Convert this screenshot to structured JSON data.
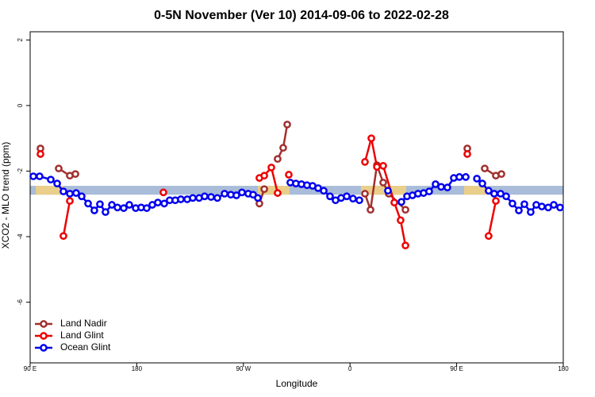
{
  "chart_data": {
    "type": "line",
    "title": "0-5N November (Ver 10)   2014-09-06 to 2022-02-28",
    "x_label": "Longitude",
    "y_label": "XCO2 - MLO trend (ppm)",
    "xlim": [
      90,
      540
    ],
    "ylim": [
      -7.85,
      2.25
    ],
    "xticks": [
      {
        "value": 90,
        "label": "90 E"
      },
      {
        "value": 180,
        "label": "180"
      },
      {
        "value": 270,
        "label": "90 W"
      },
      {
        "value": 360,
        "label": "0"
      },
      {
        "value": 450,
        "label": "90 E"
      },
      {
        "value": 540,
        "label": "180"
      }
    ],
    "yticks": [
      2,
      0,
      -2,
      -4,
      -6
    ],
    "band": {
      "range": [
        -2.45,
        -2.72
      ],
      "color": "#a9bcd9"
    },
    "highlight_ranges": {
      "color": "#f5d27a",
      "ranges": [
        [
          94.7,
          118.1
        ],
        [
          282.2,
          309.0
        ],
        [
          369.2,
          407.4
        ],
        [
          456.3,
          476.4
        ]
      ]
    },
    "legend": "bottom-left",
    "series": [
      {
        "name": "Land Nadir",
        "color": "#a0302e",
        "x": [
          98.7,
          null,
          114.1,
          123.5,
          128.2,
          null,
          283.5,
          287.6,
          null,
          298.9,
          303.6,
          307.0,
          null,
          372.6,
          377.3,
          382.7,
          388.0,
          392.7,
          406.8,
          null,
          459.0,
          null,
          473.7,
          483.1,
          487.8
        ],
        "values": [
          -1.31,
          null,
          -1.92,
          -2.14,
          -2.09,
          null,
          -2.99,
          -2.55,
          null,
          -1.63,
          -1.29,
          -0.58,
          null,
          -2.69,
          -3.18,
          -1.82,
          -2.35,
          -2.69,
          -3.18,
          null,
          -1.31,
          null,
          -1.92,
          -2.14,
          -2.09
        ]
      },
      {
        "name": "Land Glint",
        "color": "#ee0000",
        "x": [
          98.7,
          null,
          118.1,
          123.5,
          null,
          202.5,
          null,
          283.5,
          287.6,
          293.6,
          298.9,
          null,
          308.3,
          null,
          372.6,
          378.0,
          382.7,
          388.0,
          397.4,
          402.7,
          406.8,
          null,
          459.0,
          null,
          477.0,
          483.1
        ],
        "values": [
          -1.48,
          null,
          -3.98,
          -2.91,
          null,
          -2.65,
          null,
          -2.21,
          -2.14,
          -1.89,
          -2.67,
          null,
          -2.11,
          null,
          -1.72,
          -1.0,
          -1.87,
          -1.84,
          -2.96,
          -3.5,
          -4.27,
          null,
          -1.48,
          null,
          -3.98,
          -2.91
        ]
      },
      {
        "name": "Ocean Glint",
        "color": "#0000ee",
        "x": [
          92.7,
          98.0,
          107.4,
          112.8,
          118.1,
          123.5,
          128.8,
          133.5,
          138.9,
          144.2,
          148.9,
          153.6,
          159.0,
          163.7,
          169.0,
          173.7,
          179.1,
          183.7,
          188.4,
          193.1,
          197.8,
          203.2,
          207.8,
          212.5,
          217.2,
          222.6,
          227.3,
          232.6,
          237.3,
          242.7,
          248.0,
          254.1,
          259.4,
          264.1,
          268.8,
          274.1,
          278.2,
          282.2,
          null,
          309.6,
          314.3,
          319.0,
          323.7,
          328.4,
          333.1,
          337.8,
          343.1,
          347.8,
          352.5,
          357.2,
          362.5,
          367.9,
          null,
          392.0,
          null,
          403.4,
          408.1,
          412.7,
          417.4,
          422.1,
          426.8,
          432.2,
          436.9,
          442.2,
          447.6,
          452.3,
          457.7,
          null,
          467.1,
          471.7,
          477.0,
          481.7,
          487.1,
          491.8,
          497.1,
          502.5,
          507.2,
          512.5,
          517.2,
          521.9,
          527.3,
          532.0,
          537.3
        ],
        "values": [
          -2.16,
          -2.16,
          -2.26,
          -2.38,
          -2.62,
          -2.69,
          -2.67,
          -2.77,
          -2.99,
          -3.2,
          -3.01,
          -3.25,
          -3.03,
          -3.11,
          -3.13,
          -3.03,
          -3.13,
          -3.11,
          -3.13,
          -3.03,
          -2.96,
          -2.99,
          -2.89,
          -2.89,
          -2.86,
          -2.86,
          -2.82,
          -2.82,
          -2.77,
          -2.79,
          -2.82,
          -2.69,
          -2.72,
          -2.74,
          -2.65,
          -2.69,
          -2.72,
          -2.82,
          null,
          -2.35,
          -2.38,
          -2.4,
          -2.43,
          -2.45,
          -2.52,
          -2.6,
          -2.77,
          -2.89,
          -2.82,
          -2.77,
          -2.84,
          -2.89,
          null,
          -2.6,
          null,
          -2.94,
          -2.77,
          -2.74,
          -2.69,
          -2.67,
          -2.62,
          -2.4,
          -2.48,
          -2.5,
          -2.21,
          -2.18,
          -2.18,
          null,
          -2.23,
          -2.38,
          -2.6,
          -2.69,
          -2.69,
          -2.77,
          -2.99,
          -3.2,
          -3.01,
          -3.25,
          -3.03,
          -3.08,
          -3.11,
          -3.03,
          -3.11
        ]
      }
    ]
  }
}
